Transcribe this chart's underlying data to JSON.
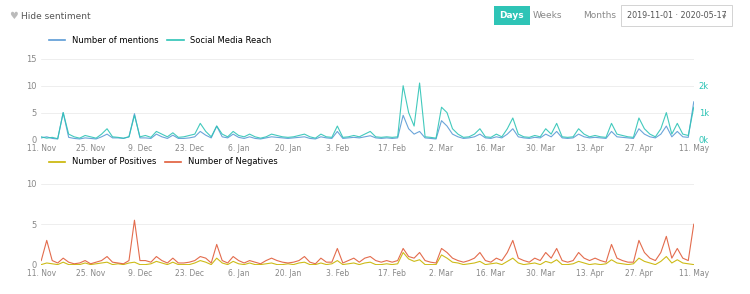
{
  "top_chart": {
    "legend": [
      "Number of mentions",
      "Social Media Reach"
    ],
    "line_colors": [
      "#5b9bd5",
      "#2ec4b6"
    ],
    "ylim_left": [
      0,
      15
    ],
    "ylim_right": [
      0,
      3000
    ],
    "yticks_left": [
      0,
      5,
      10,
      15
    ],
    "yticks_right_labels": [
      "0k",
      "1k",
      "2k"
    ],
    "yticks_right_vals": [
      0,
      1000,
      2000
    ]
  },
  "bottom_chart": {
    "legend": [
      "Number of Positives",
      "Number of Negatives"
    ],
    "line_colors": [
      "#c8b400",
      "#e05c3a"
    ],
    "ylim": [
      0,
      10
    ],
    "yticks": [
      0,
      5,
      10
    ]
  },
  "x_tick_labels": [
    "11. Nov",
    "25. Nov",
    "9. Dec",
    "23. Dec",
    "6. Jan",
    "20. Jan",
    "3. Feb",
    "17. Feb",
    "2. Mar",
    "16. Mar",
    "30. Mar",
    "13. Apr",
    "27. Apr",
    "11. May"
  ],
  "bg_color": "#ffffff",
  "grid_color": "#e8e8e8",
  "text_color": "#888888",
  "mentions": [
    0.3,
    0.5,
    0.2,
    0.1,
    5.0,
    0.4,
    0.2,
    0.1,
    0.3,
    0.2,
    0.1,
    0.5,
    1.0,
    0.3,
    0.3,
    0.2,
    0.5,
    4.8,
    0.3,
    0.3,
    0.2,
    1.0,
    0.5,
    0.2,
    0.8,
    0.2,
    0.2,
    0.3,
    0.5,
    1.5,
    0.8,
    0.3,
    2.5,
    0.5,
    0.3,
    1.0,
    0.4,
    0.2,
    0.5,
    0.2,
    0.1,
    0.3,
    0.5,
    0.4,
    0.3,
    0.2,
    0.3,
    0.4,
    0.5,
    0.2,
    0.1,
    0.5,
    0.3,
    0.2,
    1.5,
    0.2,
    0.3,
    0.4,
    0.3,
    0.5,
    0.7,
    0.3,
    0.2,
    0.3,
    0.2,
    0.3,
    4.5,
    2.0,
    1.0,
    1.5,
    0.3,
    0.2,
    0.1,
    3.5,
    2.5,
    1.0,
    0.5,
    0.2,
    0.3,
    0.5,
    1.0,
    0.3,
    0.2,
    0.5,
    0.3,
    1.0,
    2.0,
    0.5,
    0.3,
    0.2,
    0.4,
    0.3,
    1.0,
    0.5,
    1.5,
    0.3,
    0.2,
    0.3,
    1.0,
    0.5,
    0.3,
    0.4,
    0.3,
    0.2,
    1.5,
    0.5,
    0.4,
    0.3,
    0.2,
    2.0,
    1.0,
    0.5,
    0.3,
    1.0,
    2.5,
    0.5,
    1.5,
    0.5,
    0.4,
    7.0
  ],
  "reach": [
    100,
    50,
    80,
    30,
    1000,
    200,
    100,
    50,
    150,
    100,
    50,
    200,
    400,
    100,
    80,
    50,
    100,
    900,
    100,
    150,
    80,
    300,
    200,
    100,
    250,
    80,
    100,
    150,
    200,
    600,
    300,
    100,
    500,
    200,
    100,
    300,
    150,
    100,
    200,
    100,
    50,
    100,
    200,
    150,
    100,
    80,
    100,
    150,
    200,
    100,
    50,
    200,
    100,
    80,
    500,
    80,
    100,
    150,
    100,
    200,
    300,
    100,
    80,
    100,
    80,
    100,
    2000,
    1000,
    500,
    2100,
    100,
    80,
    50,
    1200,
    1000,
    400,
    200,
    80,
    100,
    200,
    400,
    100,
    80,
    200,
    100,
    400,
    800,
    200,
    100,
    80,
    150,
    100,
    400,
    200,
    600,
    100,
    80,
    100,
    400,
    200,
    100,
    150,
    100,
    80,
    600,
    200,
    150,
    100,
    80,
    800,
    400,
    200,
    100,
    400,
    1000,
    200,
    600,
    200,
    150,
    1200
  ],
  "positives": [
    0,
    0.2,
    0.1,
    0,
    0.3,
    0,
    0,
    0,
    0.2,
    0,
    0.1,
    0.2,
    0.3,
    0,
    0.1,
    0,
    0.2,
    0.3,
    0,
    0,
    0.1,
    0.4,
    0.2,
    0,
    0.3,
    0,
    0,
    0,
    0.2,
    0.5,
    0.3,
    0,
    0.8,
    0.2,
    0,
    0.4,
    0.1,
    0,
    0.2,
    0,
    0,
    0.1,
    0.2,
    0,
    0,
    0.1,
    0,
    0.2,
    0.3,
    0,
    0,
    0.2,
    0,
    0.1,
    0.5,
    0,
    0.1,
    0.2,
    0,
    0.2,
    0.3,
    0,
    0,
    0.1,
    0,
    0.1,
    1.5,
    0.7,
    0.4,
    0.6,
    0,
    0,
    0,
    1.2,
    0.8,
    0.3,
    0.2,
    0,
    0.1,
    0.2,
    0.4,
    0,
    0.1,
    0.2,
    0,
    0.4,
    0.8,
    0.2,
    0,
    0.1,
    0.2,
    0,
    0.4,
    0.2,
    0.6,
    0,
    0,
    0.1,
    0.4,
    0.2,
    0,
    0.1,
    0,
    0.1,
    0.6,
    0.2,
    0.1,
    0,
    0.1,
    0.8,
    0.4,
    0.2,
    0,
    0.4,
    1.0,
    0.2,
    0.6,
    0.2,
    0.1,
    0
  ],
  "negatives": [
    0.5,
    3.0,
    0.5,
    0.2,
    0.8,
    0.3,
    0.1,
    0.2,
    0.5,
    0.1,
    0.3,
    0.5,
    1.0,
    0.3,
    0.2,
    0.1,
    0.5,
    5.5,
    0.5,
    0.5,
    0.3,
    1.0,
    0.5,
    0.2,
    0.8,
    0.2,
    0.2,
    0.3,
    0.5,
    1.0,
    0.8,
    0.2,
    2.5,
    0.5,
    0.2,
    1.0,
    0.5,
    0.2,
    0.5,
    0.3,
    0.1,
    0.5,
    0.8,
    0.5,
    0.3,
    0.2,
    0.3,
    0.5,
    1.0,
    0.3,
    0.1,
    0.8,
    0.3,
    0.3,
    2.0,
    0.2,
    0.5,
    0.8,
    0.3,
    0.8,
    1.0,
    0.5,
    0.3,
    0.5,
    0.3,
    0.5,
    2.0,
    1.0,
    0.8,
    1.5,
    0.5,
    0.3,
    0.2,
    2.0,
    1.5,
    0.8,
    0.5,
    0.3,
    0.5,
    0.8,
    1.5,
    0.5,
    0.3,
    0.8,
    0.5,
    1.5,
    3.0,
    0.8,
    0.5,
    0.3,
    0.8,
    0.5,
    1.5,
    0.8,
    2.0,
    0.5,
    0.3,
    0.5,
    1.5,
    0.8,
    0.5,
    0.8,
    0.5,
    0.3,
    2.5,
    0.8,
    0.5,
    0.3,
    0.3,
    3.0,
    1.5,
    0.8,
    0.5,
    1.5,
    3.5,
    0.8,
    2.0,
    0.8,
    0.5,
    5.0
  ],
  "header_bg": "#f5f5f5",
  "days_btn_color": "#2ec4b6",
  "header_text_color": "#555555"
}
